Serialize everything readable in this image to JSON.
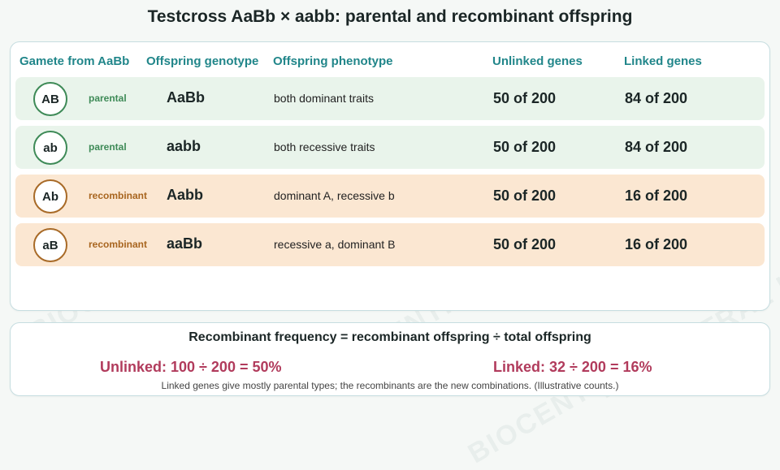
{
  "title": "Testcross AaBb × aabb: parental and recombinant offspring",
  "watermark": "BIOCENTRAL IB",
  "table": {
    "headers": {
      "gamete": "Gamete from AaBb",
      "genotype": "Offspring genotype",
      "phenotype": "Offspring phenotype",
      "unlinked": "Unlinked genes",
      "linked": "Linked genes"
    },
    "rows": [
      {
        "gamete": "AB",
        "type": "parental",
        "genotype": "AaBb",
        "phenotype": "both dominant traits",
        "unlinked": "50 of 200",
        "linked": "84 of 200"
      },
      {
        "gamete": "ab",
        "type": "parental",
        "genotype": "aabb",
        "phenotype": "both recessive traits",
        "unlinked": "50 of 200",
        "linked": "84 of 200"
      },
      {
        "gamete": "Ab",
        "type": "recombinant",
        "genotype": "Aabb",
        "phenotype": "dominant A, recessive b",
        "unlinked": "50 of 200",
        "linked": "16 of 200"
      },
      {
        "gamete": "aB",
        "type": "recombinant",
        "genotype": "aaBb",
        "phenotype": "recessive a, dominant B",
        "unlinked": "50 of 200",
        "linked": "16 of 200"
      }
    ]
  },
  "formula": {
    "title": "Recombinant frequency = recombinant offspring ÷ total offspring",
    "unlinked": "Unlinked: 100 ÷ 200 = 50%",
    "linked": "Linked: 32 ÷ 200 = 16%",
    "note": "Linked genes give mostly parental types; the recombinants are the new combinations. (Illustrative counts.)"
  },
  "colors": {
    "header_teal": "#21868a",
    "parental_bg": "#e9f4eb",
    "parental_accent": "#3e8a57",
    "recombinant_bg": "#fbe7d2",
    "recombinant_accent": "#a8651f",
    "formula_accent": "#b13b5c"
  }
}
